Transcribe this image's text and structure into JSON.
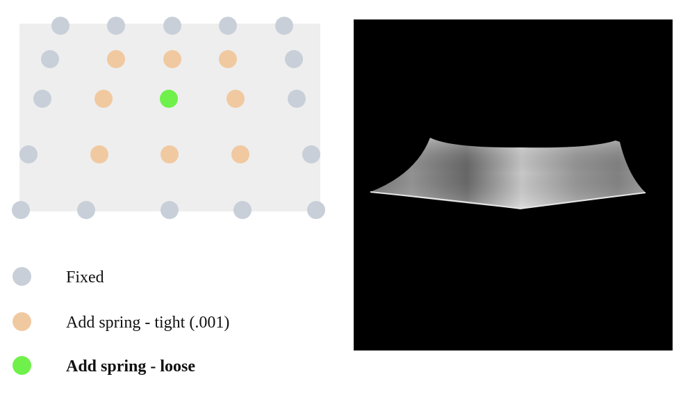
{
  "colors": {
    "fixed": "#c8cfd8",
    "tight": "#f1c9a0",
    "loose": "#6ff04a",
    "grid_background": "#eeeeee",
    "render_background": "#000000"
  },
  "grid": {
    "rows": [
      [
        "fixed",
        "fixed",
        "fixed",
        "fixed",
        "fixed"
      ],
      [
        "fixed",
        "tight",
        "tight",
        "tight",
        "fixed"
      ],
      [
        "fixed",
        "tight",
        "loose",
        "tight",
        "fixed"
      ],
      [
        "fixed",
        "tight",
        "tight",
        "tight",
        "fixed"
      ],
      [
        "fixed",
        "fixed",
        "fixed",
        "fixed",
        "fixed"
      ]
    ]
  },
  "legend": [
    {
      "kind": "fixed",
      "label": "Fixed",
      "bold": false
    },
    {
      "kind": "tight",
      "label": "Add spring - tight (.001)",
      "bold": false
    },
    {
      "kind": "loose",
      "label": "Add spring - loose",
      "bold": true
    }
  ]
}
